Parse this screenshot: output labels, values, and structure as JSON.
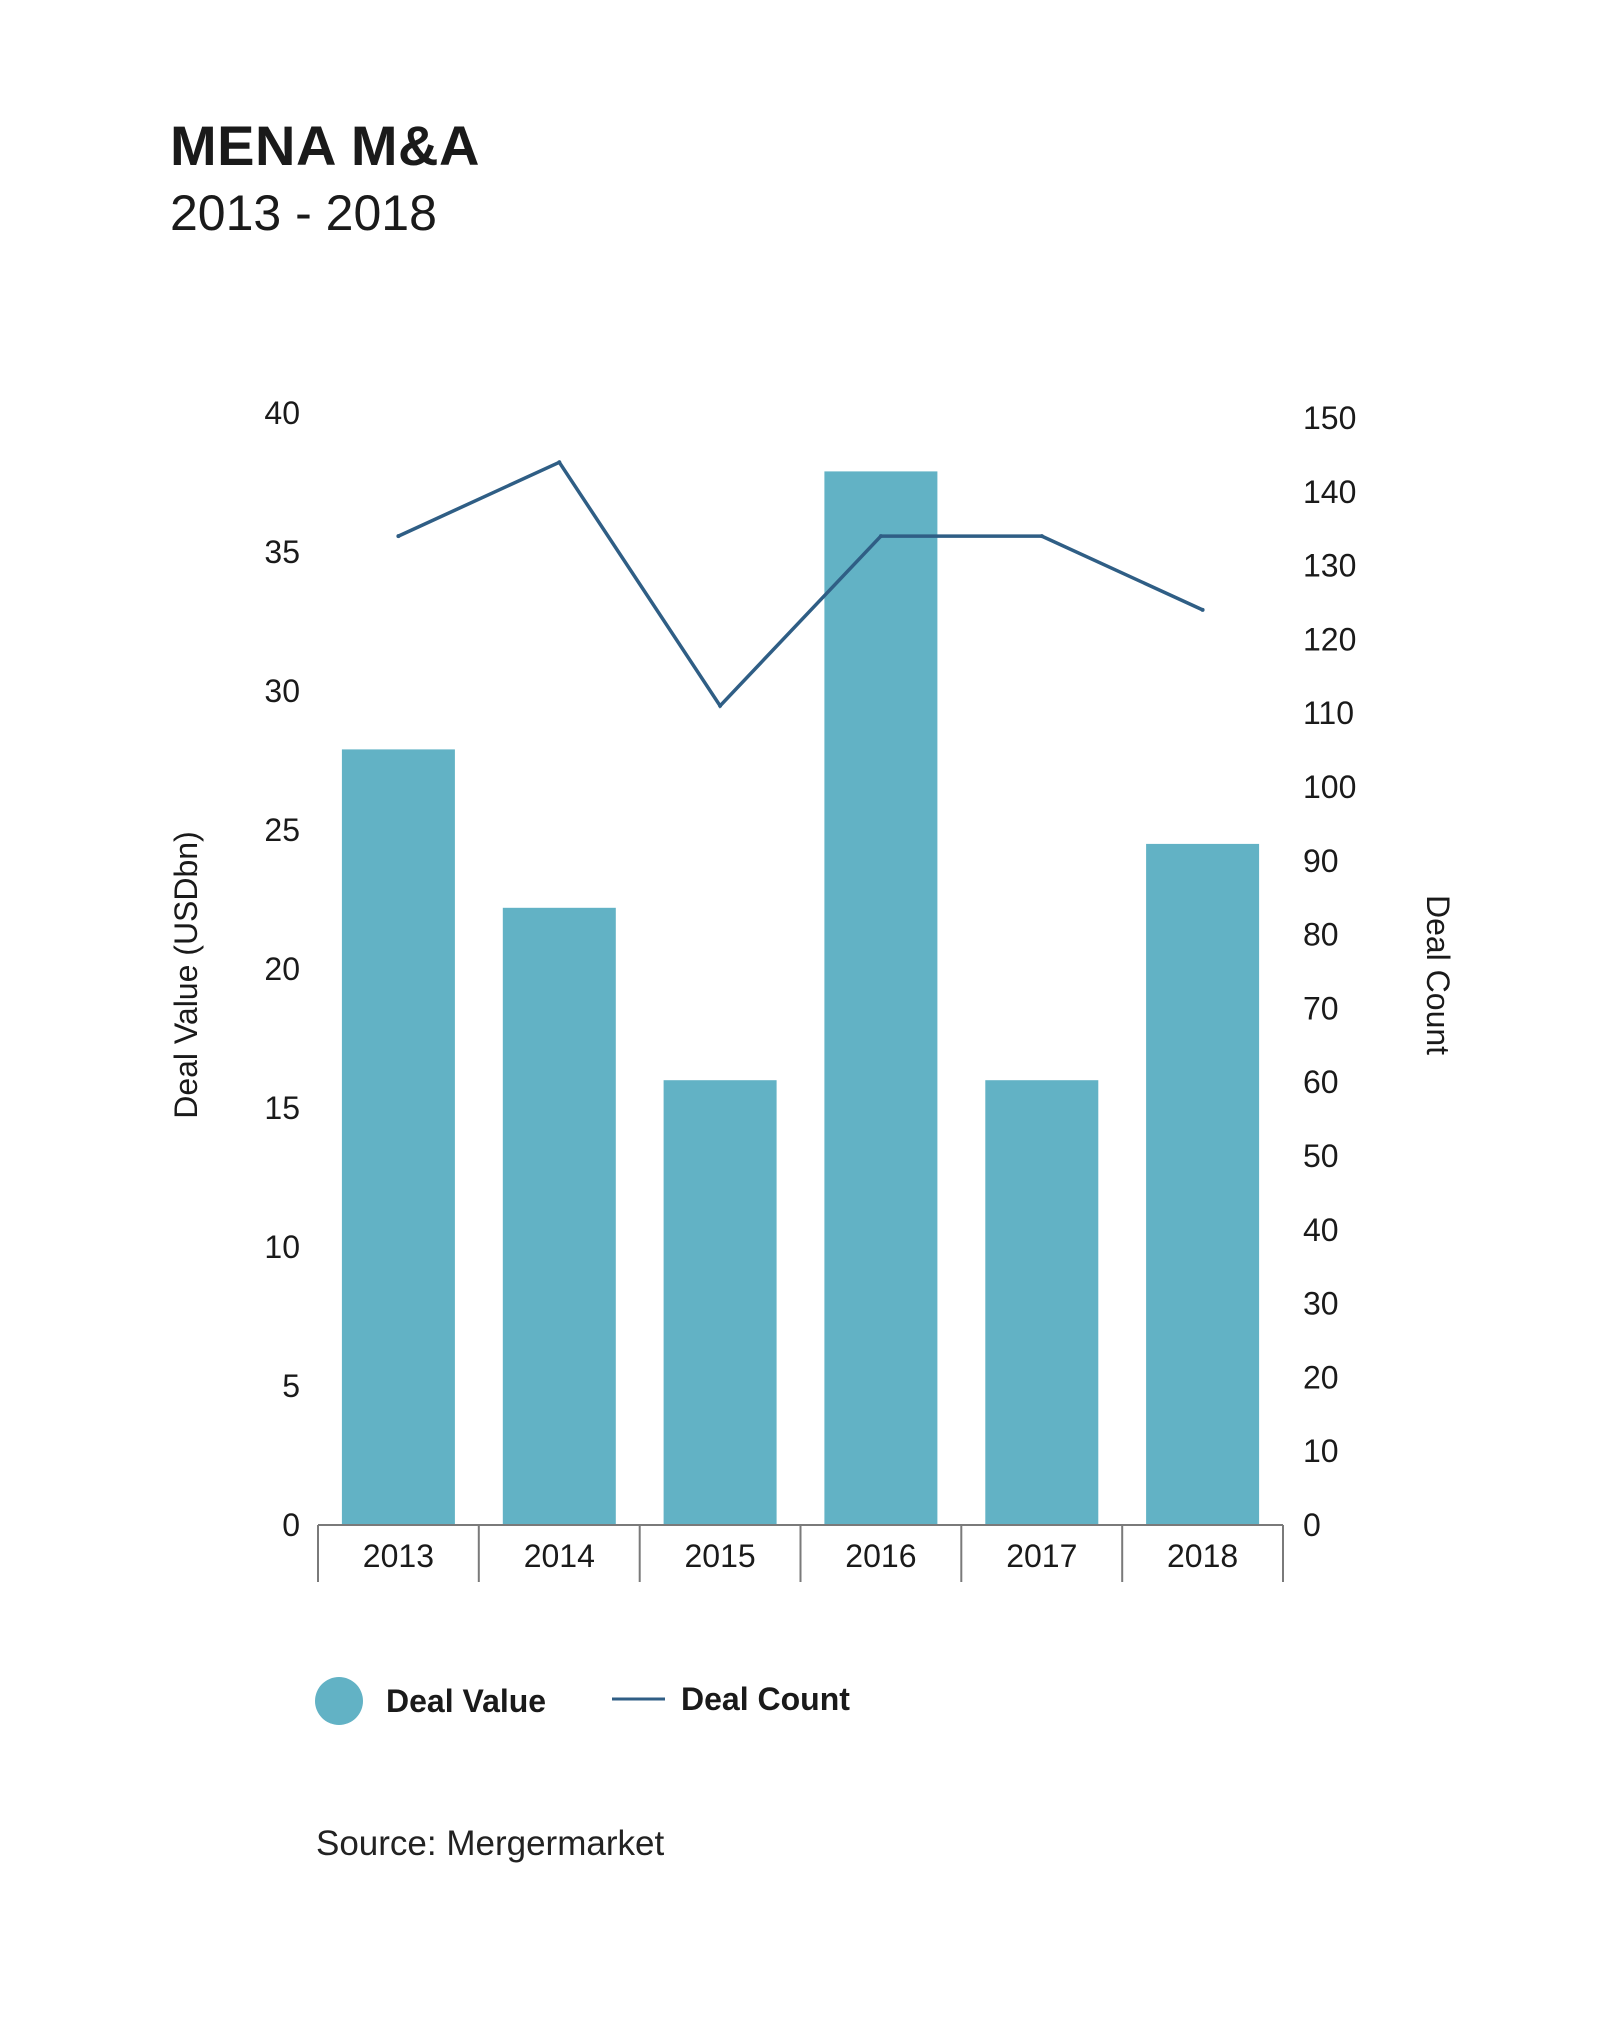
{
  "header": {
    "title": "MENA M&A",
    "subtitle": "2013 - 2018"
  },
  "footer": {
    "source": "Source: Mergermarket"
  },
  "colors": {
    "bar": "#62B2C5",
    "line": "#2F5E85",
    "axis": "#7a7a7a"
  },
  "chart_data": {
    "type": "bar",
    "title": "MENA M&A",
    "subtitle": "2013 - 2018",
    "categories": [
      "2013",
      "2014",
      "2015",
      "2016",
      "2017",
      "2018"
    ],
    "series": [
      {
        "name": "Deal Value",
        "type": "bar",
        "axis": "left",
        "values": [
          27.9,
          22.2,
          16.0,
          37.9,
          16.0,
          24.5
        ]
      },
      {
        "name": "Deal Count",
        "type": "line",
        "axis": "right",
        "values": [
          134,
          144,
          111,
          134,
          134,
          124
        ]
      }
    ],
    "ylabel": "Deal Value (USDbn)",
    "ylabel_right": "Deal Count",
    "ylim": [
      0,
      40
    ],
    "ylim_right": [
      0,
      150
    ],
    "yticks": [
      "0",
      "5",
      "10",
      "15",
      "20",
      "25",
      "30",
      "35",
      "40"
    ],
    "yticks_right": [
      "0",
      "10",
      "20",
      "30",
      "40",
      "50",
      "60",
      "70",
      "80",
      "90",
      "100",
      "110",
      "120",
      "130",
      "140",
      "150"
    ],
    "grid": false,
    "legend_position": "bottom-left"
  }
}
